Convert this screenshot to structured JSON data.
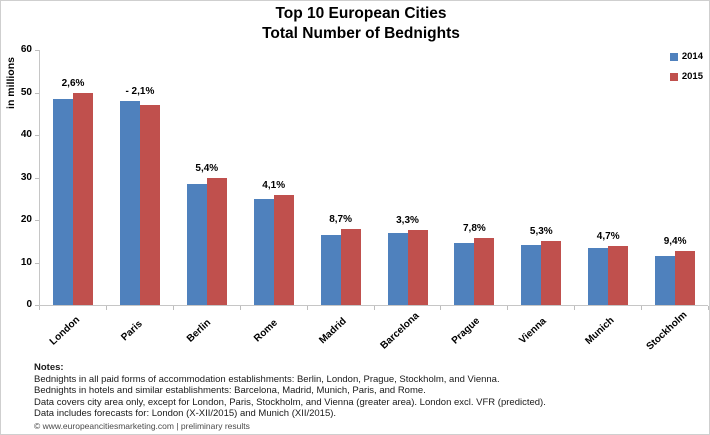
{
  "title": {
    "line1": "Top 10 European Cities",
    "line2": "Total Number of Bednights"
  },
  "legend": {
    "items": [
      {
        "label": "2014",
        "color": "#4F81BD"
      },
      {
        "label": "2015",
        "color": "#C0504D"
      }
    ]
  },
  "y_axis": {
    "label": "in millions",
    "ticks": [
      0,
      10,
      20,
      30,
      40,
      50,
      60
    ]
  },
  "chart_data": {
    "type": "bar",
    "title": "Top 10 European Cities - Total Number of Bednights",
    "xlabel": "",
    "ylabel": "in millions",
    "ylim": [
      0,
      60
    ],
    "grid": false,
    "legend_position": "top-right",
    "categories": [
      "London",
      "Paris",
      "Berlin",
      "Rome",
      "Madrid",
      "Barcelona",
      "Prague",
      "Vienna",
      "Munich",
      "Stockholm"
    ],
    "series": [
      {
        "name": "2014",
        "color": "#4F81BD",
        "values": [
          48.5,
          48.0,
          28.5,
          25.0,
          16.4,
          17.0,
          14.7,
          14.2,
          13.3,
          11.6
        ]
      },
      {
        "name": "2015",
        "color": "#C0504D",
        "values": [
          49.8,
          47.0,
          30.0,
          26.0,
          17.8,
          17.6,
          15.8,
          15.0,
          13.9,
          12.7
        ]
      }
    ],
    "change_labels": [
      "2,6%",
      "- 2,1%",
      "5,4%",
      "4,1%",
      "8,7%",
      "3,3%",
      "7,8%",
      "5,3%",
      "4,7%",
      "9,4%"
    ]
  },
  "notes": {
    "title": "Notes:",
    "lines": [
      "Bednights in all paid forms of accommodation establishments: Berlin, London, Prague, Stockholm, and Vienna.",
      "Bednights in hotels and similar establishments: Barcelona, Madrid, Munich, Paris, and Rome.",
      "Data covers city area only, except for London, Paris, Stockholm, and Vienna (greater area). London excl. VFR (predicted).",
      "Data includes forecasts for: London (X-XII/2015) and Munich (XII/2015)."
    ],
    "copyright": "© www.europeancitiesmarketing.com | preliminary results"
  }
}
